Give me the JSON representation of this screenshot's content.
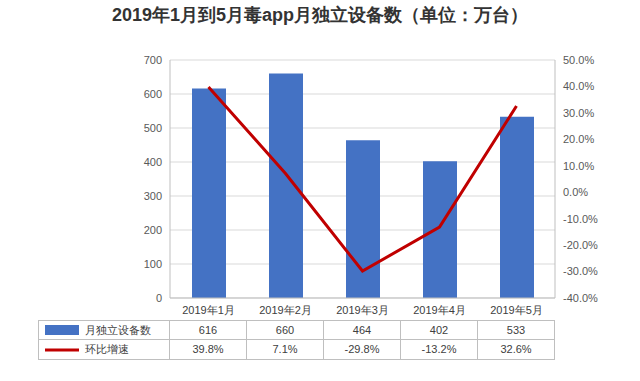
{
  "chart_data": {
    "type": "bar",
    "title": "2019年1月到5月毒app月独立设备数（单位：万台）",
    "categories": [
      "2019年1月",
      "2019年2月",
      "2019年3月",
      "2019年4月",
      "2019年5月"
    ],
    "series": [
      {
        "name": "月独立设备数",
        "type": "bar",
        "color": "#4472c4",
        "values": [
          616,
          660,
          464,
          402,
          533
        ]
      },
      {
        "name": "环比增速",
        "type": "line",
        "color": "#c00000",
        "axis": "y2",
        "values": [
          39.8,
          7.1,
          -29.8,
          -13.2,
          32.6
        ],
        "value_labels": [
          "39.8%",
          "7.1%",
          "-29.8%",
          "-13.2%",
          "32.6%"
        ]
      }
    ],
    "ylim": [
      0,
      700
    ],
    "yticks": [
      0,
      100,
      200,
      300,
      400,
      500,
      600,
      700
    ],
    "y2lim": [
      -40,
      50
    ],
    "y2ticks": [
      {
        "value": -40,
        "label": "-40.0%"
      },
      {
        "value": -30,
        "label": "-30.0%"
      },
      {
        "value": -20,
        "label": "-20.0%"
      },
      {
        "value": -10,
        "label": "-10.0%"
      },
      {
        "value": 0,
        "label": "0.0%"
      },
      {
        "value": 10,
        "label": "10.0%"
      },
      {
        "value": 20,
        "label": "20.0%"
      },
      {
        "value": 30,
        "label": "30.0%"
      },
      {
        "value": 40,
        "label": "40.0%"
      },
      {
        "value": 50,
        "label": "50.0%"
      }
    ],
    "grid": true,
    "legend": "bottom"
  }
}
